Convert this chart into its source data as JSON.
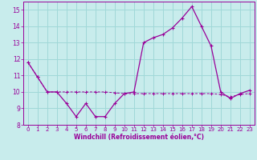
{
  "x": [
    0,
    1,
    2,
    3,
    4,
    5,
    6,
    7,
    8,
    9,
    10,
    11,
    12,
    13,
    14,
    15,
    16,
    17,
    18,
    19,
    20,
    21,
    22,
    23
  ],
  "temp": [
    11.8,
    10.9,
    10.0,
    10.0,
    9.3,
    8.5,
    9.3,
    8.5,
    8.5,
    9.3,
    9.9,
    10.0,
    13.0,
    13.3,
    13.5,
    13.9,
    14.5,
    15.2,
    14.0,
    12.8,
    10.0,
    9.6,
    9.9,
    10.1
  ],
  "windchill": [
    11.8,
    10.9,
    10.0,
    10.0,
    10.0,
    10.0,
    10.0,
    10.0,
    10.0,
    9.95,
    9.9,
    9.9,
    9.9,
    9.9,
    9.9,
    9.9,
    9.9,
    9.9,
    9.9,
    9.9,
    9.85,
    9.7,
    9.85,
    9.9
  ],
  "color": "#990099",
  "bg_color": "#c8ecec",
  "grid_color": "#a0d8d8",
  "xlabel": "Windchill (Refroidissement éolien,°C)",
  "ylim": [
    8,
    15.5
  ],
  "xlim": [
    -0.5,
    23.5
  ],
  "yticks": [
    8,
    9,
    10,
    11,
    12,
    13,
    14,
    15
  ],
  "xticks": [
    0,
    1,
    2,
    3,
    4,
    5,
    6,
    7,
    8,
    9,
    10,
    11,
    12,
    13,
    14,
    15,
    16,
    17,
    18,
    19,
    20,
    21,
    22,
    23
  ],
  "tick_fontsize": 5.0,
  "xlabel_fontsize": 5.5
}
